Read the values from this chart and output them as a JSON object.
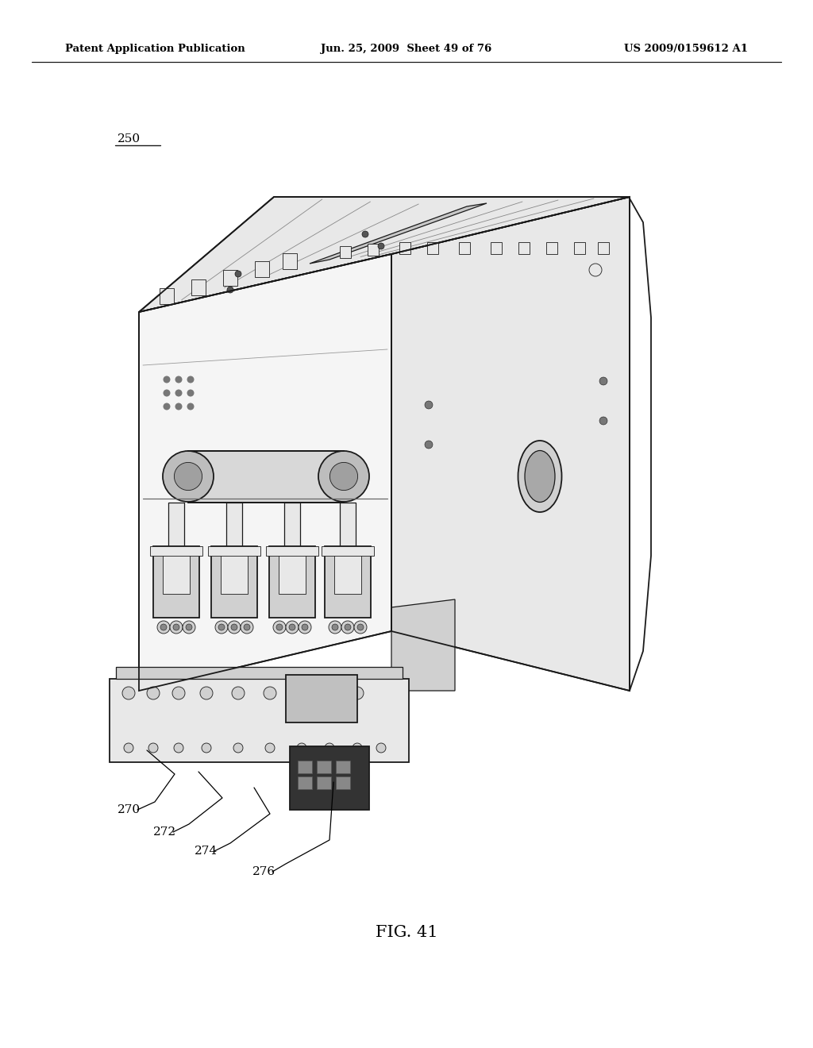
{
  "background_color": "#ffffff",
  "header_left": "Patent Application Publication",
  "header_center": "Jun. 25, 2009  Sheet 49 of 76",
  "header_right": "US 2009/0159612 A1",
  "label_250": "250",
  "label_fig": "FIG. 41",
  "ref_labels": [
    "270",
    "272",
    "274",
    "276"
  ],
  "header_fontsize": 9.5,
  "label_fontsize": 11,
  "caption_fontsize": 15,
  "ref_fontsize": 11
}
